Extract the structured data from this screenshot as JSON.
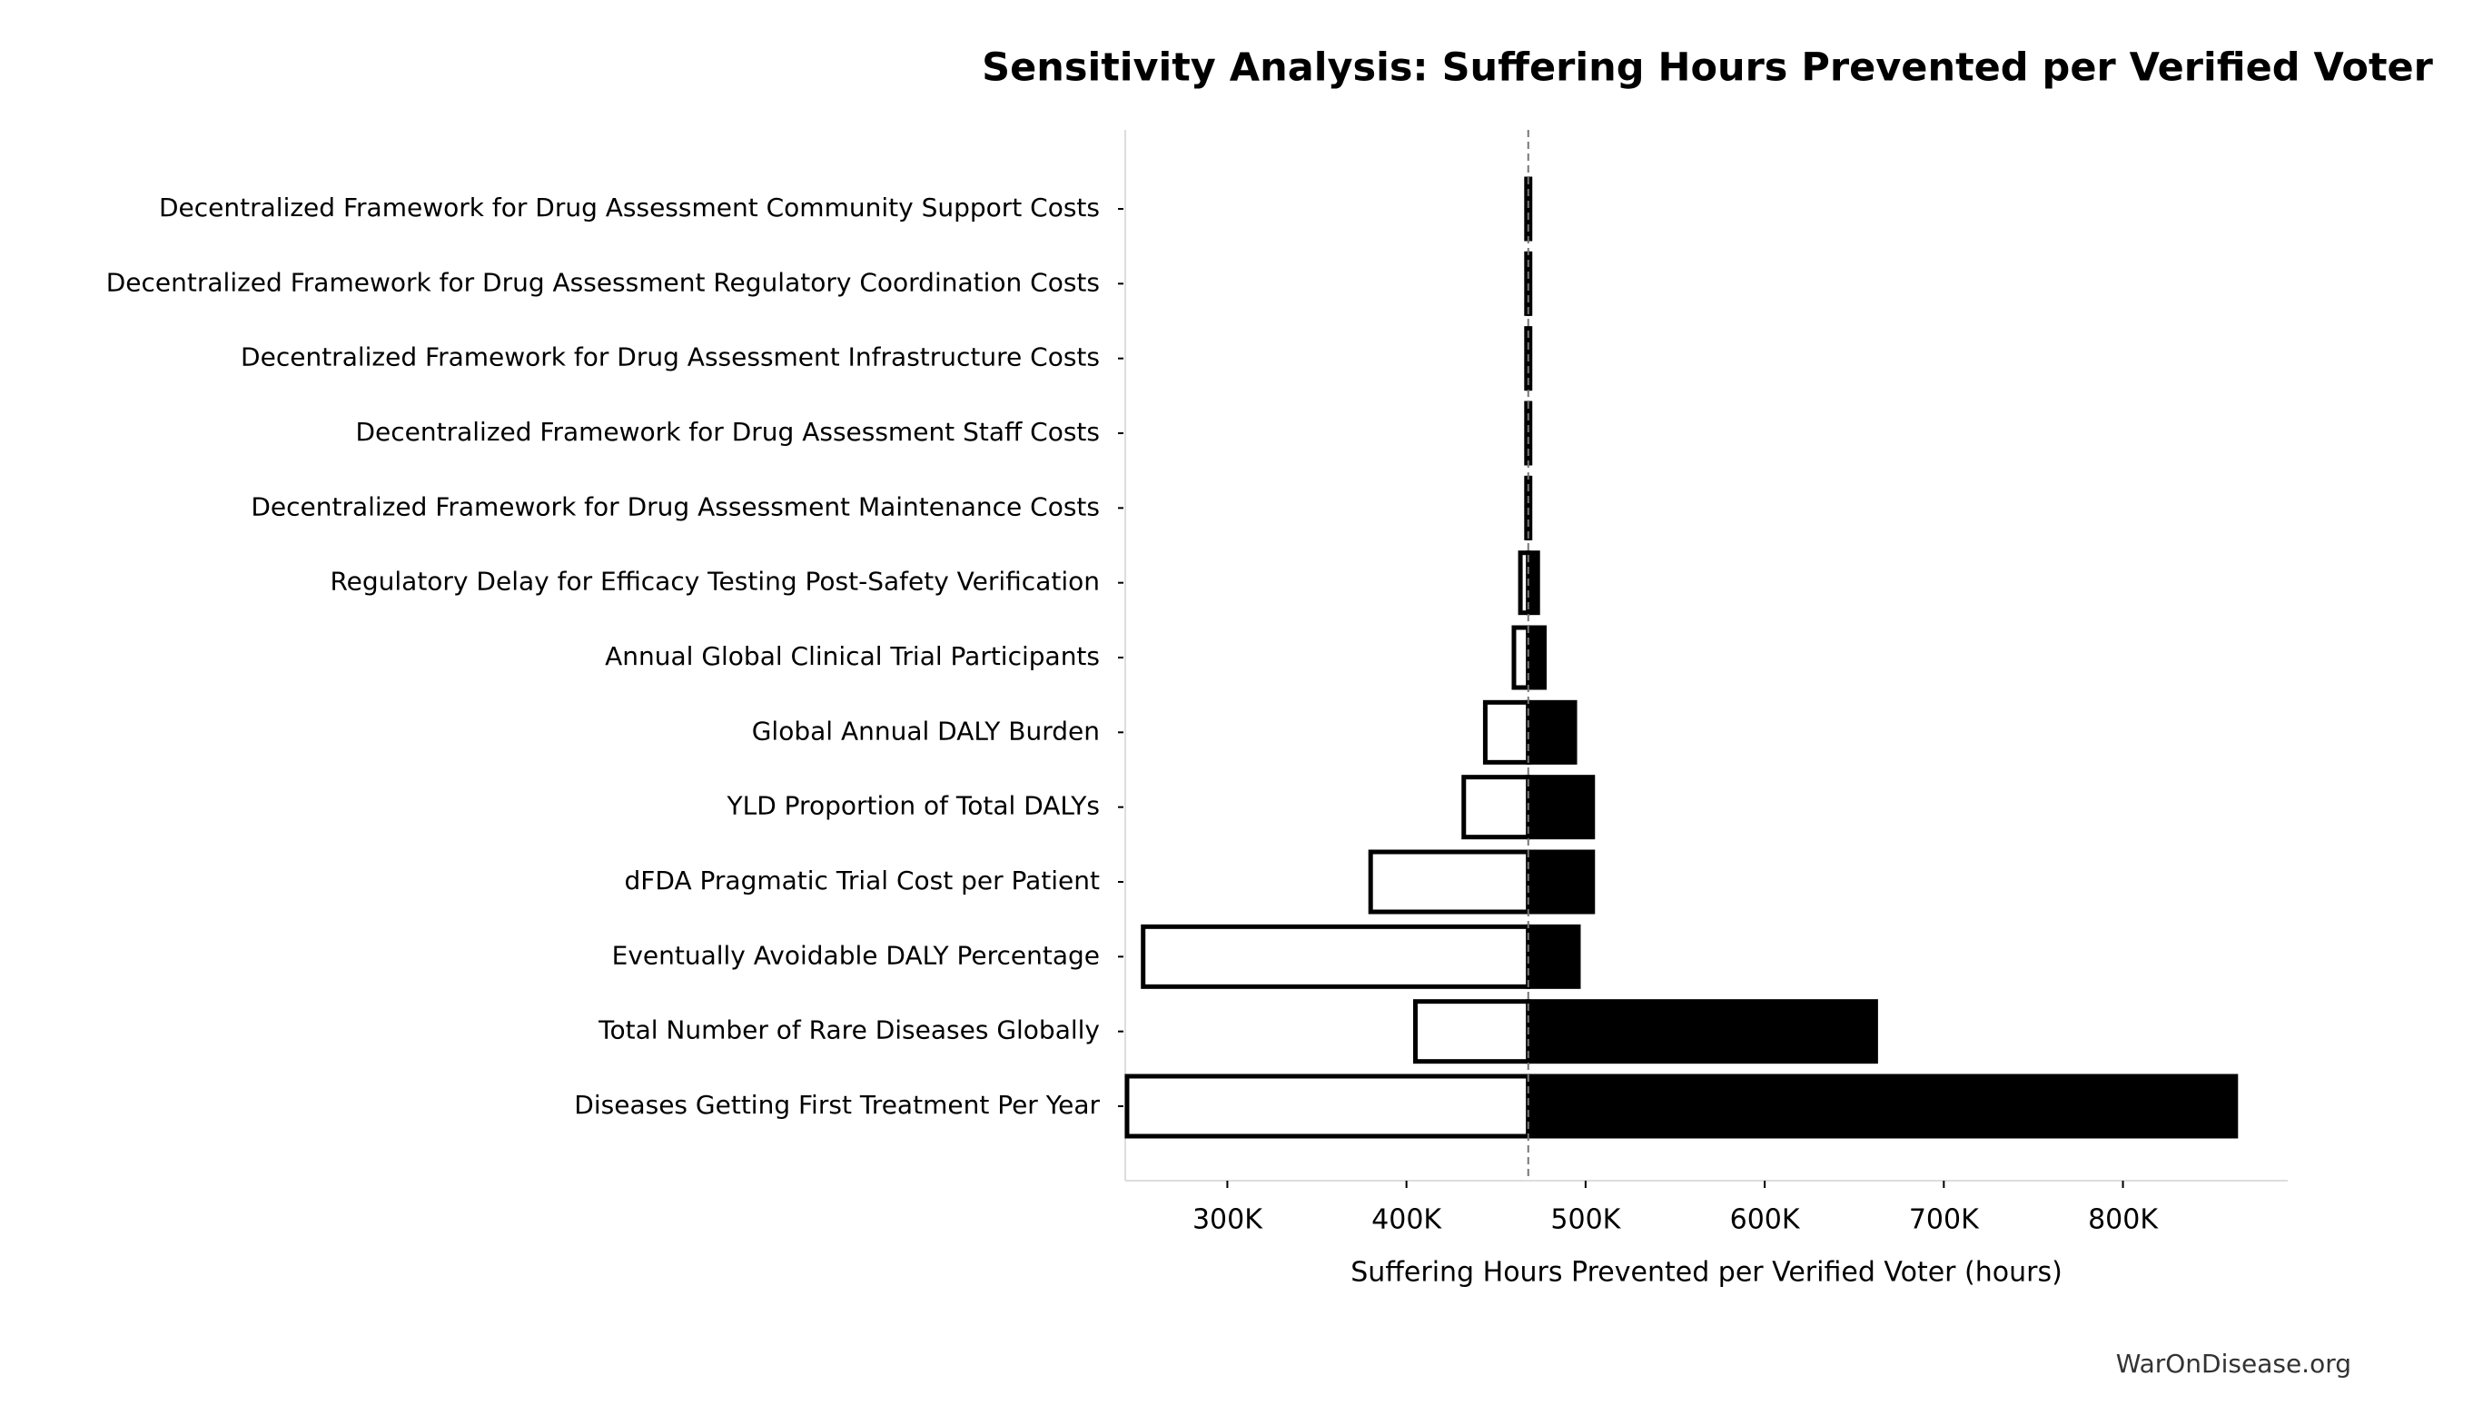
{
  "chart_data": {
    "type": "tornado",
    "title": "Sensitivity Analysis: Suffering Hours Prevented per Verified Voter",
    "xlabel": "Suffering Hours Prevented per Verified Voter (hours)",
    "source": "WarOnDisease.org",
    "categories": [
      "Decentralized Framework for Drug Assessment Community Support Costs",
      "Decentralized Framework for Drug Assessment Regulatory Coordination Costs",
      "Decentralized Framework for Drug Assessment Infrastructure Costs",
      "Decentralized Framework for Drug Assessment Staff Costs",
      "Decentralized Framework for Drug Assessment Maintenance Costs",
      "Regulatory Delay for Efficacy Testing Post-Safety Verification",
      "Annual Global Clinical Trial Participants",
      "Global Annual DALY Burden",
      "YLD Proportion of Total DALYs",
      "dFDA Pragmatic Trial Cost per Patient",
      "Eventually Avoidable DALY Percentage",
      "Total Number of Rare Diseases Globally",
      "Diseases Getting First Treatment Per Year"
    ],
    "baseline": 468000,
    "series": [
      {
        "color": "#ffffff",
        "values": [
          467000,
          467000,
          467000,
          467000,
          467000,
          463600,
          460000,
          444000,
          432000,
          380000,
          253000,
          405000,
          244000
        ]
      },
      {
        "color": "#000000",
        "values": [
          469000,
          469000,
          469000,
          469000,
          469000,
          473300,
          477000,
          494000,
          504000,
          504000,
          496000,
          662000,
          863000
        ]
      }
    ],
    "xlim": [
      243000,
      892000
    ],
    "xticks": [
      {
        "value": 300000,
        "label": "300K"
      },
      {
        "value": 400000,
        "label": "400K"
      },
      {
        "value": 500000,
        "label": "500K"
      },
      {
        "value": 600000,
        "label": "600K"
      },
      {
        "value": 700000,
        "label": "700K"
      },
      {
        "value": 800000,
        "label": "800K"
      }
    ]
  }
}
